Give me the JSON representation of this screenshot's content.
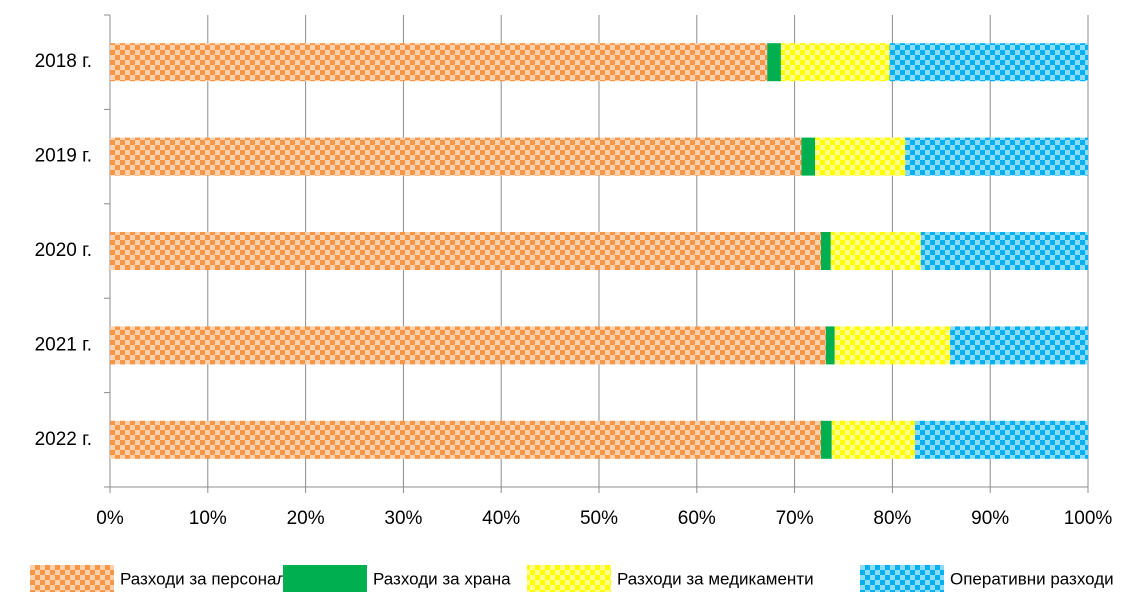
{
  "chart_data": {
    "type": "stacked_barh",
    "categories": [
      "2018 г.",
      "2019 г.",
      "2020 г.",
      "2021 г.",
      "2022 г."
    ],
    "series": [
      {
        "name": "Разходи за персонал",
        "color": "#f79646",
        "pattern": true,
        "values": [
          67.2,
          70.7,
          72.7,
          73.2,
          72.7
        ]
      },
      {
        "name": "Разходи за храна",
        "color": "#00b050",
        "pattern": false,
        "values": [
          1.4,
          1.4,
          1.0,
          0.9,
          1.1
        ]
      },
      {
        "name": "Разходи за медикаменти",
        "color": "#ffff00",
        "pattern": true,
        "values": [
          11.1,
          9.2,
          9.2,
          11.8,
          8.5
        ]
      },
      {
        "name": "Оперативни разходи",
        "color": "#00b0f0",
        "pattern": true,
        "values": [
          20.3,
          18.7,
          17.1,
          14.1,
          17.7
        ]
      }
    ],
    "xlim": [
      0,
      100
    ],
    "xticks": [
      {
        "value": 0,
        "label": "0%"
      },
      {
        "value": 10,
        "label": "10%"
      },
      {
        "value": 20,
        "label": "20%"
      },
      {
        "value": 30,
        "label": "30%"
      },
      {
        "value": 40,
        "label": "40%"
      },
      {
        "value": 50,
        "label": "50%"
      },
      {
        "value": 60,
        "label": "60%"
      },
      {
        "value": 70,
        "label": "70%"
      },
      {
        "value": 80,
        "label": "80%"
      },
      {
        "value": 90,
        "label": "90%"
      },
      {
        "value": 100,
        "label": "100%"
      }
    ],
    "grid": true,
    "legend": "bottom"
  }
}
